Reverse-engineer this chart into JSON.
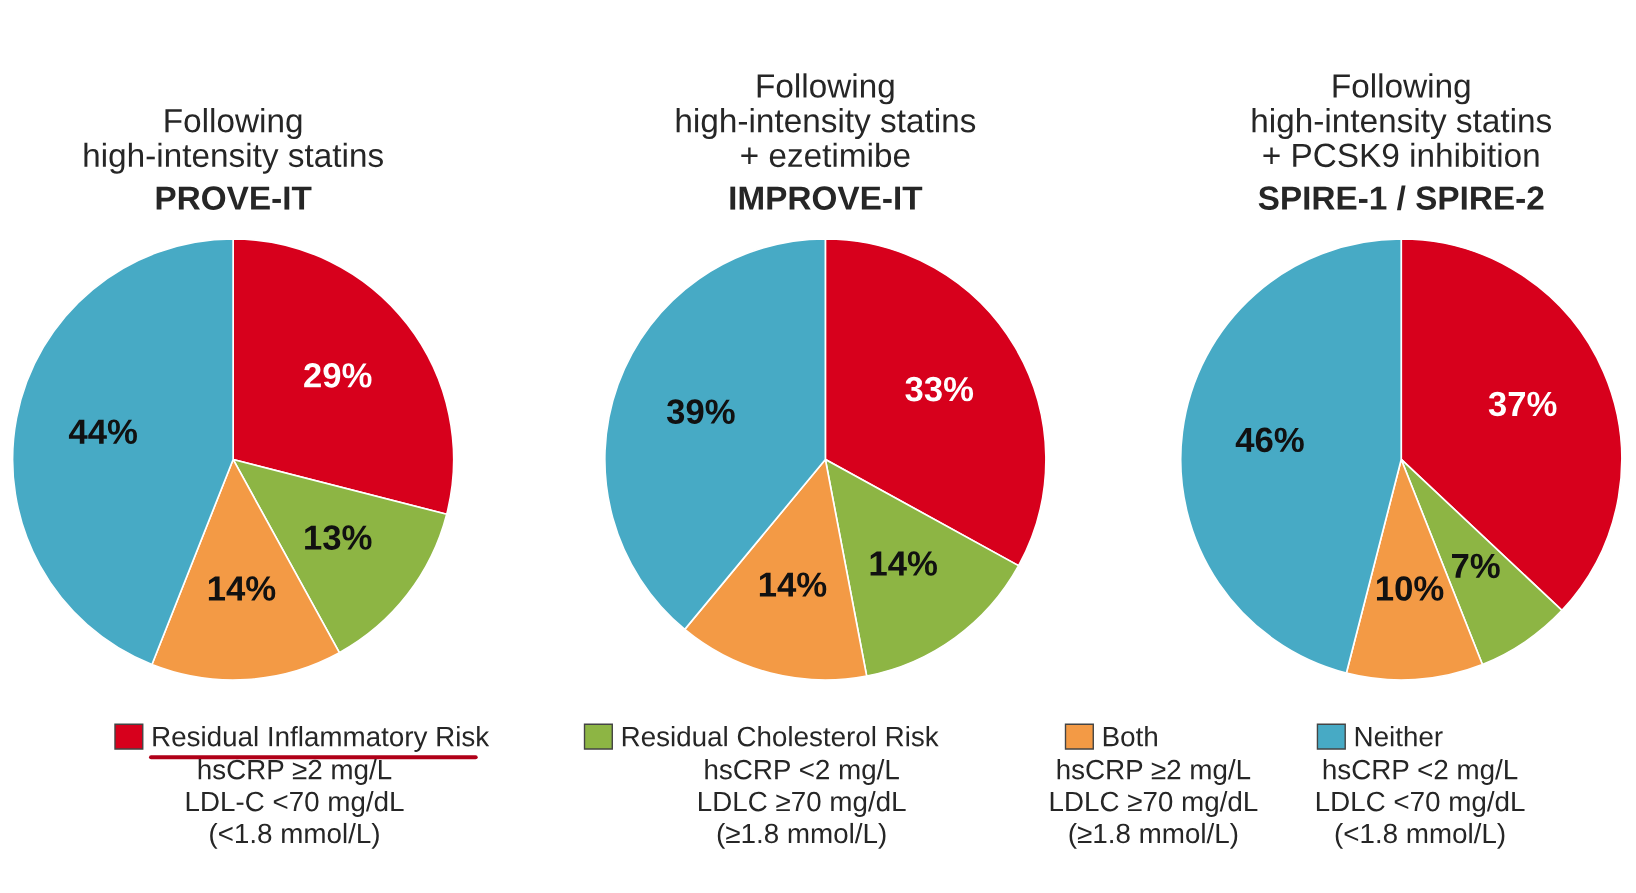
{
  "chart_data": [
    {
      "type": "pie",
      "title": "Following\nhigh-intensity statins",
      "subtitle": "PROVE-IT",
      "categories": [
        "Residual Inflammatory Risk",
        "Residual Cholesterol Risk",
        "Both",
        "Neither"
      ],
      "values": [
        29,
        13,
        14,
        44
      ],
      "value_labels": [
        "29%",
        "13%",
        "14%",
        "44%"
      ],
      "colors": [
        "#d7001c",
        "#8db544",
        "#f39a45",
        "#47aac5"
      ],
      "legend": "bottom",
      "annotations": [
        "hsCRP ≥2 mg/L\nLDL-C <70 mg/dL\n(<1.8 mmol/L)",
        "hsCRP <2 mg/L\nLDLC ≥70 mg/dL\n(≥1.8 mmol/L)",
        "hsCRP ≥2 mg/L\nLDLC ≥70 mg/dL\n(≥1.8 mmol/L)",
        "hsCRP <2 mg/L\nLDLC <70 mg/dL\n(<1.8 mmol/L)"
      ]
    },
    {
      "type": "pie",
      "title": "Following\nhigh-intensity statins\n+ ezetimibe",
      "subtitle": "IMPROVE-IT",
      "values": [
        33,
        14,
        14,
        39
      ],
      "value_labels": [
        "33%",
        "14%",
        "14%",
        "39%"
      ],
      "colors": [
        "#d7001c",
        "#8db544",
        "#f39a45",
        "#47aac5"
      ]
    },
    {
      "type": "pie",
      "title": "Following\nhigh-intensity statins\n+ PCSK9 inhibition",
      "subtitle": "SPIRE-1 / SPIRE-2",
      "values": [
        37,
        7,
        10,
        46
      ],
      "value_labels": [
        "37%",
        "7%",
        "10%",
        "46%"
      ],
      "colors": [
        "#d7001c",
        "#8db544",
        "#f39a45",
        "#47aac5"
      ]
    }
  ]
}
